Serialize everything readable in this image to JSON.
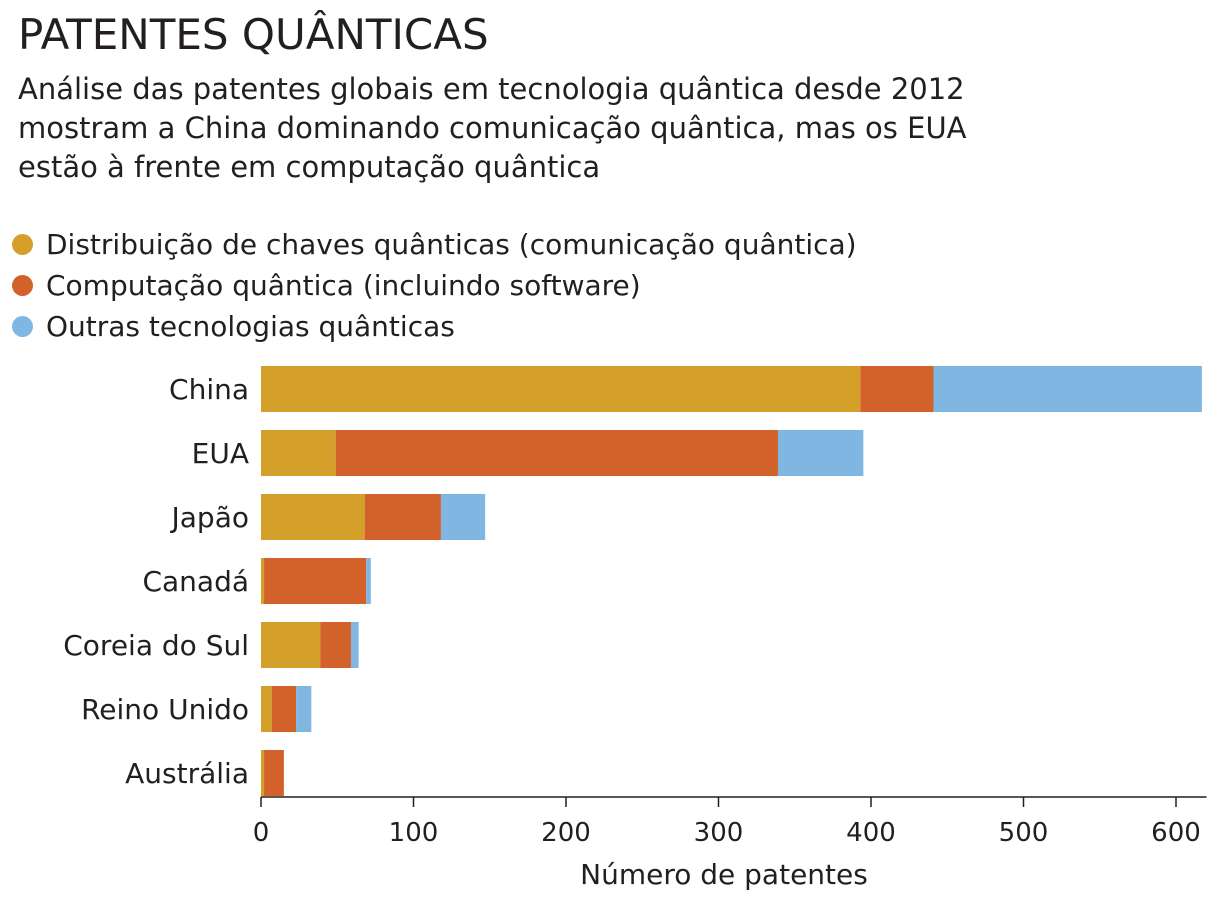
{
  "title": "PATENTES QUÂNTICAS",
  "subtitle_lines": [
    "Análise das patentes globais em tecnologia quântica desde 2012",
    "mostram a China dominando comunicação quântica, mas os EUA",
    "estão à frente em computação quântica"
  ],
  "chart_data": {
    "type": "bar",
    "orientation": "horizontal",
    "stacked": true,
    "title": "PATENTES QUÂNTICAS",
    "xlabel": "Número de patentes",
    "ylabel": "",
    "xlim": [
      0,
      620
    ],
    "xticks": [
      0,
      100,
      200,
      300,
      400,
      500,
      600
    ],
    "grid": false,
    "legend_position": "top-left",
    "categories": [
      "China",
      "EUA",
      "Japão",
      "Canadá",
      "Coreia do Sul",
      "Reino Unido",
      "Austrália"
    ],
    "series": [
      {
        "name": "Distribuição de chaves quânticas (comunicação quântica)",
        "color": "#d4a02a",
        "values": [
          393,
          49,
          68,
          2,
          39,
          7,
          2
        ]
      },
      {
        "name": "Computação quântica (incluindo software)",
        "color": "#d2622a",
        "values": [
          48,
          290,
          50,
          67,
          20,
          16,
          13
        ]
      },
      {
        "name": "Outras tecnologias quânticas",
        "color": "#80b6e2",
        "values": [
          176,
          56,
          29,
          3,
          5,
          10,
          0
        ]
      }
    ]
  }
}
